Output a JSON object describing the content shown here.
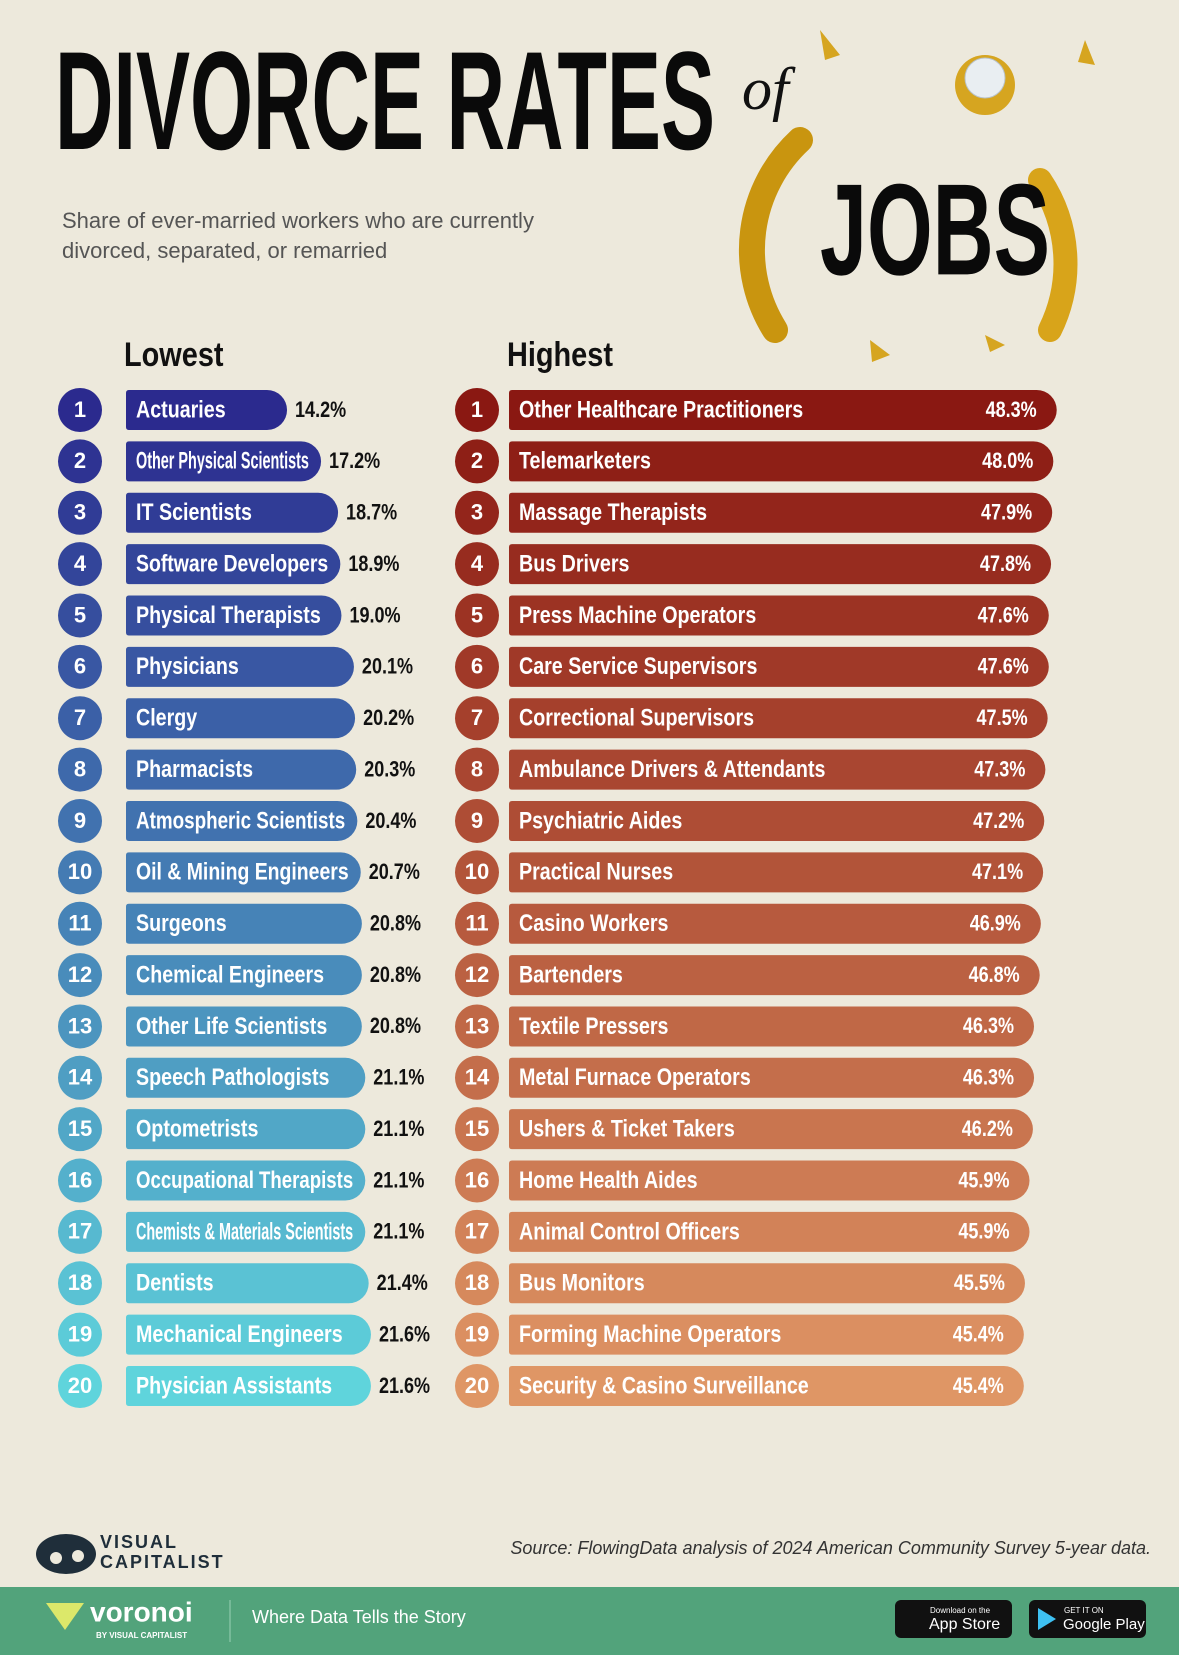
{
  "header": {
    "title": "DIVORCE RATES",
    "title_of": "of",
    "title_jobs": "JOBS",
    "subtitle": "Share of ever-married workers who are currently divorced, separated, or remarried"
  },
  "chart_data": [
    {
      "type": "bar",
      "orientation": "horizontal",
      "title": "Lowest",
      "ranks": [
        1,
        2,
        3,
        4,
        5,
        6,
        7,
        8,
        9,
        10,
        11,
        12,
        13,
        14,
        15,
        16,
        17,
        18,
        19,
        20
      ],
      "categories": [
        "Actuaries",
        "Other Physical Scientists",
        "IT Scientists",
        "Software Developers",
        "Physical Therapists",
        "Physicians",
        "Clergy",
        "Pharmacists",
        "Atmospheric Scientists",
        "Oil & Mining Engineers",
        "Surgeons",
        "Chemical Engineers",
        "Other Life Scientists",
        "Speech Pathologists",
        "Optometrists",
        "Occupational Therapists",
        "Chemists & Materials Scientists",
        "Dentists",
        "Mechanical Engineers",
        "Physician Assistants"
      ],
      "values": [
        14.2,
        17.2,
        18.7,
        18.9,
        19.0,
        20.1,
        20.2,
        20.3,
        20.4,
        20.7,
        20.8,
        20.8,
        20.8,
        21.1,
        21.1,
        21.1,
        21.1,
        21.4,
        21.6,
        21.6
      ],
      "value_labels": [
        "14.2%",
        "17.2%",
        "18.7%",
        "18.9%",
        "19.0%",
        "20.1%",
        "20.2%",
        "20.3%",
        "20.4%",
        "20.7%",
        "20.8%",
        "20.8%",
        "20.8%",
        "21.1%",
        "21.1%",
        "21.1%",
        "21.1%",
        "21.4%",
        "21.6%",
        "21.6%"
      ],
      "xlim": [
        0,
        50
      ],
      "colors": [
        "#2b2a8e",
        "#5fd4dc"
      ],
      "label_position": "outside"
    },
    {
      "type": "bar",
      "orientation": "horizontal",
      "title": "Highest",
      "ranks": [
        1,
        2,
        3,
        4,
        5,
        6,
        7,
        8,
        9,
        10,
        11,
        12,
        13,
        14,
        15,
        16,
        17,
        18,
        19,
        20
      ],
      "categories": [
        "Other Healthcare Practitioners",
        "Telemarketers",
        "Massage Therapists",
        "Bus Drivers",
        "Press Machine Operators",
        "Care Service Supervisors",
        "Correctional Supervisors",
        "Ambulance Drivers & Attendants",
        "Psychiatric Aides",
        "Practical Nurses",
        "Casino Workers",
        "Bartenders",
        "Textile Pressers",
        "Metal Furnace Operators",
        "Ushers & Ticket Takers",
        "Home Health Aides",
        "Animal Control Officers",
        "Bus Monitors",
        "Forming Machine Operators",
        "Security & Casino Surveillance"
      ],
      "values": [
        48.3,
        48.0,
        47.9,
        47.8,
        47.6,
        47.6,
        47.5,
        47.3,
        47.2,
        47.1,
        46.9,
        46.8,
        46.3,
        46.3,
        46.2,
        45.9,
        45.9,
        45.5,
        45.4,
        45.4
      ],
      "value_labels": [
        "48.3%",
        "48.0%",
        "47.9%",
        "47.8%",
        "47.6%",
        "47.6%",
        "47.5%",
        "47.3%",
        "47.2%",
        "47.1%",
        "46.9%",
        "46.8%",
        "46.3%",
        "46.3%",
        "46.2%",
        "45.9%",
        "45.9%",
        "45.5%",
        "45.4%",
        "45.4%"
      ],
      "xlim": [
        0,
        50
      ],
      "colors": [
        "#8a1812",
        "#df9665"
      ],
      "label_position": "inside"
    }
  ],
  "footer": {
    "source": "Source: FlowingData analysis of 2024 American Community Survey 5-year data.",
    "brand_top": "VISUAL",
    "brand_bottom": "CAPITALIST",
    "voronoi": "voronoi",
    "voronoi_sub": "BY VISUAL CAPITALIST",
    "tagline": "Where Data Tells the Story",
    "app_store_small": "Download on the",
    "app_store": "App Store",
    "google_small": "GET IT ON",
    "google": "Google Play"
  }
}
